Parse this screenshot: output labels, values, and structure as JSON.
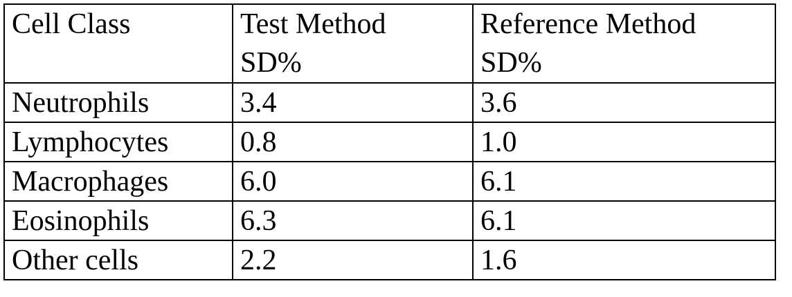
{
  "table": {
    "header": [
      "Cell Class",
      "Test Method",
      "Reference Method"
    ],
    "subheader": [
      "SD%",
      "SD%"
    ],
    "rows": [
      [
        "Neutrophils",
        "3.4",
        "3.6"
      ],
      [
        "Lymphocytes",
        "0.8",
        "1.0"
      ],
      [
        "Macrophages",
        "6.0",
        "6.1"
      ],
      [
        "Eosinophils",
        "6.3",
        "6.1"
      ],
      [
        "Other cells",
        "2.2",
        "1.6"
      ]
    ]
  }
}
